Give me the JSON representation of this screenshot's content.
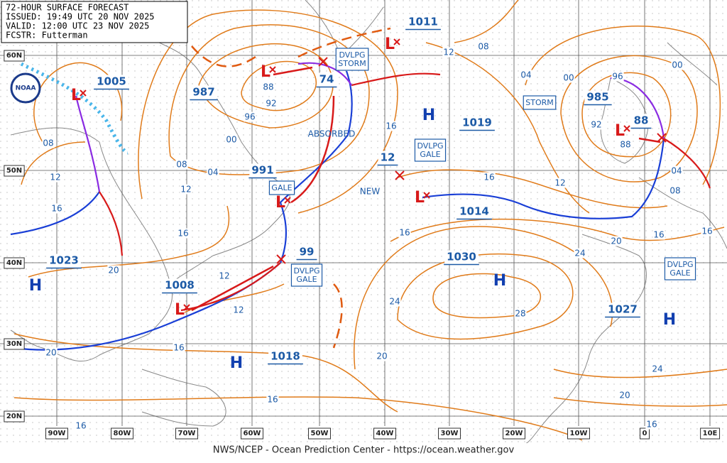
{
  "header": {
    "lines": [
      "72-HOUR SURFACE FORECAST",
      "ISSUED: 19:49 UTC 20 NOV 2025",
      "VALID: 12:00 UTC 23 NOV 2025",
      "FCSTR: Futterman"
    ]
  },
  "logo": "NOAA",
  "footer": "NWS/NCEP - Ocean Prediction Center - https://ocean.weather.gov",
  "lat_labels": [
    "60N",
    "50N",
    "40N",
    "30N",
    "20N"
  ],
  "lon_labels": [
    "90W",
    "80W",
    "70W",
    "60W",
    "50W",
    "40W",
    "30W",
    "20W",
    "10W",
    "0",
    "10E"
  ],
  "pressure_centers": [
    "1005",
    "987",
    "991",
    "74",
    "1011",
    "1019",
    "12",
    "1014",
    "1030",
    "985",
    "88",
    "99",
    "1023",
    "1008",
    "1018",
    "1027"
  ],
  "highs": [
    "H",
    "H",
    "H",
    "H",
    "H"
  ],
  "lows": [
    "L",
    "L",
    "L",
    "L",
    "L",
    "L",
    "L"
  ],
  "warnings": [
    [
      "DVLPG",
      "STORM"
    ],
    [
      "STORM"
    ],
    [
      "DVLPG",
      "GALE"
    ],
    [
      "GALE"
    ],
    [
      "DVLPG",
      "GALE"
    ],
    [
      "DVLPG",
      "GALE"
    ]
  ],
  "notes": [
    "ABSORBED",
    "NEW"
  ],
  "isobar_labels": [
    "08",
    "12",
    "04",
    "00",
    "00",
    "96",
    "92",
    "88",
    "00",
    "08",
    "04",
    "12",
    "16",
    "12",
    "12",
    "16",
    "20",
    "16",
    "16",
    "08",
    "12",
    "16",
    "20",
    "16",
    "16",
    "16",
    "24",
    "28",
    "20",
    "12",
    "24",
    "20",
    "16",
    "16",
    "08",
    "04",
    "92",
    "96",
    "88",
    "24",
    "20",
    "16"
  ]
}
